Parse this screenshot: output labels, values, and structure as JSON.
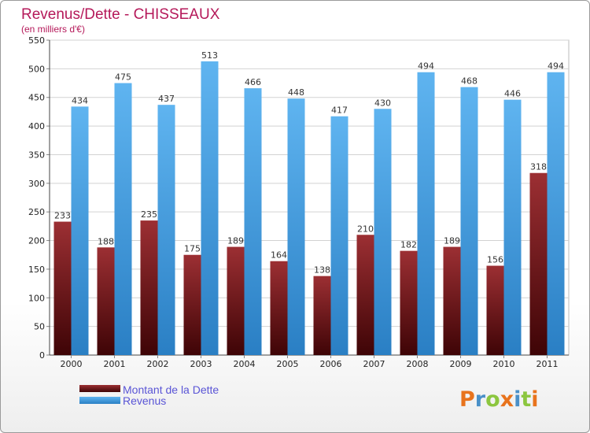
{
  "chart_data": {
    "type": "bar",
    "title": "Revenus/Dette - CHISSEAUX",
    "subtitle": "(en milliers d'€)",
    "categories": [
      "2000",
      "2001",
      "2002",
      "2003",
      "2004",
      "2005",
      "2006",
      "2007",
      "2008",
      "2009",
      "2010",
      "2011"
    ],
    "series": [
      {
        "name": "Montant de la Dette",
        "color": "#7a1a1f",
        "values": [
          233,
          188,
          235,
          175,
          189,
          164,
          138,
          210,
          182,
          189,
          156,
          318
        ]
      },
      {
        "name": "Revenus",
        "color": "#3d9be4",
        "values": [
          434,
          475,
          437,
          513,
          466,
          448,
          417,
          430,
          494,
          468,
          446,
          494
        ]
      }
    ],
    "ylim": [
      0,
      550
    ],
    "yticks": [
      0,
      50,
      100,
      150,
      200,
      250,
      300,
      350,
      400,
      450,
      500,
      550
    ],
    "grid": true,
    "legend_position": "bottom-left"
  },
  "brand": {
    "logo_letters": [
      "P",
      "r",
      "o",
      "x",
      "i",
      "t",
      "i"
    ],
    "logo_colors": [
      "#e8731c",
      "#4a90c8",
      "#8cc63f",
      "#e8731c",
      "#4a90c8",
      "#8cc63f",
      "#e8731c"
    ]
  }
}
